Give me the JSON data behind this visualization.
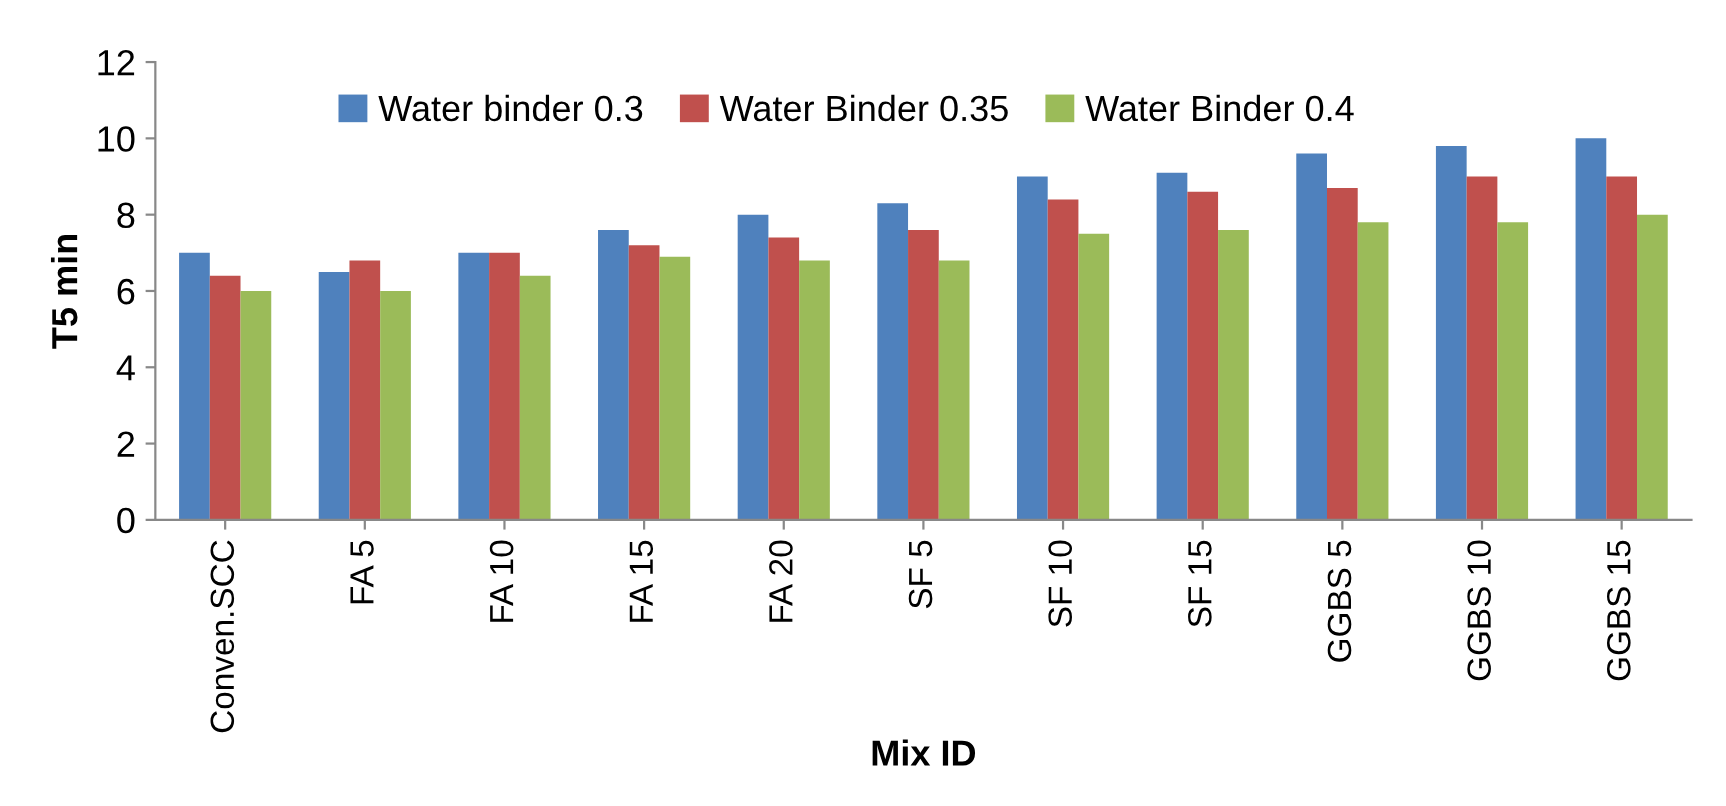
{
  "chart_data": {
    "type": "bar",
    "xlabel": "Mix ID",
    "ylabel": "T5 min",
    "categories": [
      "Conven.SCC",
      "FA 5",
      "FA 10",
      "FA 15",
      "FA 20",
      "SF 5",
      "SF 10",
      "SF 15",
      "GGBS 5",
      "GGBS 10",
      "GGBS 15"
    ],
    "series": [
      {
        "name": "Water binder 0.3",
        "color": "#4f81bd",
        "values": [
          7,
          6.5,
          7,
          7.6,
          8,
          8.3,
          9,
          9.1,
          9.6,
          9.8,
          10
        ]
      },
      {
        "name": "Water Binder 0.35",
        "color": "#c0504d",
        "values": [
          6.4,
          6.8,
          7,
          7.2,
          7.4,
          7.6,
          8.4,
          8.6,
          8.7,
          9,
          9
        ]
      },
      {
        "name": "Water Binder 0.4",
        "color": "#9bbb59",
        "values": [
          6,
          6,
          6.4,
          6.9,
          6.8,
          6.8,
          7.5,
          7.6,
          7.8,
          7.8,
          8
        ]
      }
    ],
    "ylim": [
      0,
      12
    ],
    "yticks": [
      0,
      2,
      4,
      6,
      8,
      10,
      12
    ],
    "grid": false,
    "legend": "top"
  }
}
